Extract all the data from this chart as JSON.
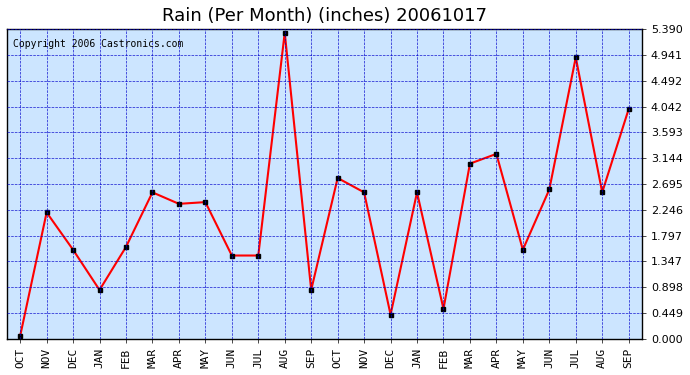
{
  "title": "Rain (Per Month) (inches) 20061017",
  "copyright_text": "Copyright 2006 Castronics.com",
  "x_labels": [
    "OCT",
    "NOV",
    "DEC",
    "JAN",
    "FEB",
    "MAR",
    "APR",
    "MAY",
    "JUN",
    "JUL",
    "AUG",
    "SEP",
    "OCT",
    "NOV",
    "DEC",
    "JAN",
    "FEB",
    "MAR",
    "APR",
    "MAY",
    "JUN",
    "JUL",
    "AUG",
    "SEP"
  ],
  "y_ticks": [
    0.0,
    0.449,
    0.898,
    1.347,
    1.797,
    2.246,
    2.695,
    3.144,
    3.593,
    4.042,
    4.492,
    4.941,
    5.39
  ],
  "y_min": 0.0,
  "y_max": 5.39,
  "values": [
    0.05,
    2.2,
    1.55,
    0.85,
    1.6,
    2.55,
    2.35,
    2.38,
    1.45,
    1.45,
    5.33,
    0.85,
    2.8,
    2.55,
    0.42,
    2.55,
    0.52,
    3.05,
    3.22,
    1.55,
    2.6,
    4.9,
    2.55,
    4.0
  ],
  "line_color": "#ff0000",
  "marker_color": "#000000",
  "bg_color": "#cce5ff",
  "plot_bg_color": "#cce5ff",
  "grid_color": "#0000cc",
  "border_color": "#000000",
  "title_fontsize": 13,
  "tick_fontsize": 8,
  "copyright_fontsize": 7
}
